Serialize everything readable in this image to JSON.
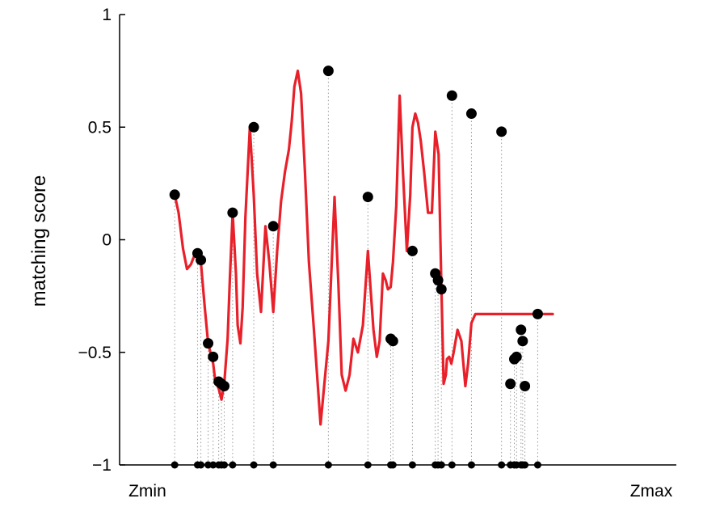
{
  "chart_data": {
    "type": "line",
    "title": "",
    "xlabel": "",
    "ylabel": "matching score",
    "ylim": [
      -1,
      1
    ],
    "xlim": [
      0,
      1
    ],
    "yticks": [
      -1,
      -0.5,
      0,
      0.5,
      1
    ],
    "ytick_labels": [
      "−1",
      "−0.5",
      "0",
      "0.5",
      "1"
    ],
    "xtick_labels": [
      {
        "x": 0.05,
        "label": "Zmin"
      },
      {
        "x": 0.955,
        "label": "Zmax"
      }
    ],
    "grid": false,
    "colors": {
      "curve": "#e8202a",
      "markers": "#000000",
      "stems": "#999999"
    },
    "curve": {
      "x": [
        0.099,
        0.106,
        0.114,
        0.121,
        0.128,
        0.136,
        0.146,
        0.153,
        0.159,
        0.168,
        0.172,
        0.178,
        0.183,
        0.188,
        0.194,
        0.198,
        0.203,
        0.209,
        0.212,
        0.217,
        0.221,
        0.226,
        0.234,
        0.241,
        0.247,
        0.254,
        0.262,
        0.269,
        0.276,
        0.283,
        0.29,
        0.297,
        0.304,
        0.309,
        0.314,
        0.32,
        0.326,
        0.333,
        0.34,
        0.349,
        0.361,
        0.375,
        0.386,
        0.393,
        0.399,
        0.406,
        0.413,
        0.42,
        0.428,
        0.437,
        0.446,
        0.456,
        0.462,
        0.467,
        0.473,
        0.478,
        0.482,
        0.487,
        0.491,
        0.497,
        0.503,
        0.509,
        0.516,
        0.522,
        0.526,
        0.531,
        0.536,
        0.541,
        0.547,
        0.554,
        0.561,
        0.567,
        0.573,
        0.578,
        0.582,
        0.586,
        0.588,
        0.592,
        0.596,
        0.6,
        0.607,
        0.614,
        0.621,
        0.626,
        0.632,
        0.639,
        0.645,
        0.652,
        0.658,
        0.666,
        0.673,
        0.682,
        0.689,
        0.694,
        0.702,
        0.71,
        0.716,
        0.721,
        0.724,
        0.728,
        0.733,
        0.738,
        0.742,
        0.746,
        0.752,
        0.756,
        0.76,
        0.763,
        0.767,
        0.773,
        0.778
      ],
      "y": [
        0.2,
        0.12,
        -0.04,
        -0.13,
        -0.11,
        -0.06,
        -0.1,
        -0.3,
        -0.46,
        -0.55,
        -0.63,
        -0.66,
        -0.71,
        -0.64,
        -0.44,
        -0.18,
        0.12,
        -0.15,
        -0.38,
        -0.46,
        -0.3,
        0.1,
        0.5,
        0.2,
        -0.15,
        -0.32,
        0.06,
        -0.1,
        -0.32,
        -0.05,
        0.17,
        0.3,
        0.4,
        0.52,
        0.68,
        0.75,
        0.65,
        0.3,
        -0.1,
        -0.4,
        -0.82,
        -0.45,
        0.19,
        -0.2,
        -0.6,
        -0.67,
        -0.6,
        -0.44,
        -0.5,
        -0.38,
        -0.05,
        -0.4,
        -0.52,
        -0.45,
        -0.15,
        -0.18,
        -0.22,
        -0.21,
        -0.1,
        0.15,
        0.64,
        0.3,
        -0.05,
        0.2,
        0.5,
        0.56,
        0.52,
        0.44,
        0.3,
        0.12,
        0.12,
        0.48,
        0.38,
        -0.2,
        -0.64,
        -0.6,
        -0.53,
        -0.52,
        -0.55,
        -0.5,
        -0.4,
        -0.45,
        -0.65,
        -0.55,
        -0.37,
        -0.33,
        -0.33,
        -0.33,
        -0.33,
        -0.33,
        -0.33,
        -0.33,
        -0.33,
        -0.33,
        -0.33,
        -0.33,
        -0.33,
        -0.33,
        -0.33,
        -0.33,
        -0.33,
        -0.33,
        -0.33,
        -0.33,
        -0.33,
        -0.33,
        -0.33,
        -0.33,
        -0.33,
        -0.33,
        -0.33
      ]
    },
    "points": {
      "x": [
        0.099,
        0.14,
        0.146,
        0.159,
        0.168,
        0.178,
        0.183,
        0.188,
        0.203,
        0.241,
        0.276,
        0.375,
        0.446,
        0.487,
        0.491,
        0.526,
        0.567,
        0.572,
        0.578,
        0.597,
        0.632,
        0.686,
        0.702,
        0.709,
        0.713,
        0.721,
        0.724,
        0.728,
        0.751
      ],
      "y": [
        0.2,
        -0.06,
        -0.09,
        -0.46,
        -0.52,
        -0.63,
        -0.64,
        -0.65,
        0.12,
        0.5,
        0.06,
        0.75,
        0.19,
        -0.44,
        -0.45,
        -0.05,
        -0.15,
        -0.18,
        -0.22,
        0.64,
        0.56,
        0.48,
        -0.64,
        -0.53,
        -0.52,
        -0.4,
        -0.45,
        -0.65,
        -0.33
      ]
    }
  }
}
